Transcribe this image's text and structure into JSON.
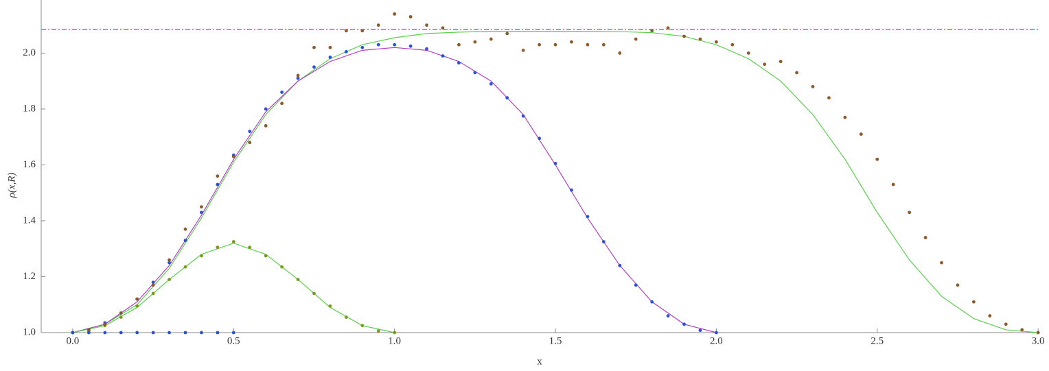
{
  "chart_data": {
    "type": "line",
    "x_label": "x",
    "y_label": "ρ(x,R)",
    "xlim": [
      -0.098,
      3.004
    ],
    "ylim": [
      1.0,
      2.19
    ],
    "xticks": [
      {
        "value": 0,
        "label": "0.0"
      },
      0.5,
      {
        "value": 1,
        "label": "1.0"
      },
      1.5,
      {
        "value": 2,
        "label": "2.0"
      },
      2.5,
      {
        "value": 3,
        "label": "3.0"
      }
    ],
    "yticks": [
      {
        "value": 1,
        "label": "1.0"
      },
      1.2,
      1.4,
      1.6,
      1.8,
      {
        "value": 2,
        "label": "2.0"
      }
    ],
    "hline": {
      "value": 2.085,
      "color": "#3a8fb0",
      "dashed": true
    },
    "series": [
      {
        "style": "line",
        "color": "#58d048",
        "x": [
          0,
          0.1,
          0.2,
          0.3,
          0.4,
          0.5,
          0.6,
          0.7,
          0.8,
          0.9,
          1.0,
          1.1,
          1.2,
          1.3,
          1.4,
          1.5,
          1.6,
          1.7,
          1.8,
          1.9,
          2.0,
          2.1,
          2.2,
          2.3,
          2.4,
          2.5,
          2.6,
          2.7,
          2.8,
          2.9,
          3.0
        ],
        "values": [
          1.0,
          1.03,
          1.1,
          1.23,
          1.41,
          1.61,
          1.78,
          1.9,
          1.98,
          2.03,
          2.055,
          2.07,
          2.075,
          2.078,
          2.078,
          2.078,
          2.078,
          2.077,
          2.073,
          2.06,
          2.03,
          1.98,
          1.9,
          1.78,
          1.62,
          1.43,
          1.26,
          1.13,
          1.05,
          1.01,
          1.0
        ]
      },
      {
        "style": "line",
        "color": "#b040c8",
        "x": [
          0,
          0.1,
          0.2,
          0.3,
          0.4,
          0.5,
          0.6,
          0.7,
          0.8,
          0.9,
          1.0,
          1.1,
          1.2,
          1.3,
          1.4,
          1.5,
          1.6,
          1.7,
          1.8,
          1.9,
          2.0
        ],
        "values": [
          1.0,
          1.03,
          1.11,
          1.24,
          1.42,
          1.62,
          1.79,
          1.9,
          1.97,
          2.01,
          2.02,
          2.01,
          1.97,
          1.9,
          1.78,
          1.6,
          1.41,
          1.24,
          1.11,
          1.03,
          1.0
        ]
      },
      {
        "style": "line",
        "color": "#58d048",
        "x": [
          0,
          0.1,
          0.2,
          0.3,
          0.4,
          0.5,
          0.6,
          0.7,
          0.8,
          0.9,
          1.0
        ],
        "values": [
          1.0,
          1.025,
          1.09,
          1.19,
          1.28,
          1.32,
          1.28,
          1.19,
          1.09,
          1.025,
          1.0
        ]
      },
      {
        "style": "dots",
        "color": "#2b4fe0",
        "x": [
          0,
          0.05,
          0.1,
          0.15,
          0.2,
          0.25,
          0.3,
          0.35,
          0.4,
          0.45,
          0.5,
          0.55,
          0.6,
          0.65,
          0.7,
          0.75,
          0.8,
          0.85,
          0.9,
          0.95,
          1.0,
          1.05,
          1.1,
          1.15,
          1.2,
          1.25,
          1.3,
          1.35,
          1.4,
          1.45,
          1.5,
          1.55,
          1.6,
          1.65,
          1.7,
          1.75,
          1.8,
          1.85,
          1.9,
          1.95,
          2.0
        ],
        "values": [
          1.0,
          1.01,
          1.035,
          1.07,
          1.12,
          1.18,
          1.25,
          1.33,
          1.43,
          1.53,
          1.635,
          1.72,
          1.8,
          1.86,
          1.91,
          1.95,
          1.985,
          2.005,
          2.02,
          2.03,
          2.03,
          2.025,
          2.015,
          1.99,
          1.965,
          1.93,
          1.89,
          1.84,
          1.775,
          1.695,
          1.605,
          1.51,
          1.415,
          1.325,
          1.24,
          1.17,
          1.11,
          1.06,
          1.03,
          1.008,
          1.0
        ]
      },
      {
        "style": "dots",
        "color": "#7a9a1a",
        "x": [
          0,
          0.05,
          0.1,
          0.15,
          0.2,
          0.25,
          0.3,
          0.35,
          0.4,
          0.45,
          0.5,
          0.55,
          0.6,
          0.65,
          0.7,
          0.75,
          0.8,
          0.85,
          0.9,
          0.95,
          1.0
        ],
        "values": [
          1.0,
          1.006,
          1.025,
          1.055,
          1.095,
          1.14,
          1.19,
          1.235,
          1.275,
          1.305,
          1.325,
          1.305,
          1.275,
          1.235,
          1.19,
          1.14,
          1.095,
          1.055,
          1.025,
          1.006,
          1.0
        ]
      },
      {
        "style": "dots",
        "color": "#8b5a2b",
        "x": [
          0,
          0.05,
          0.1,
          0.15,
          0.2,
          0.25,
          0.3,
          0.35,
          0.4,
          0.45,
          0.5,
          0.55,
          0.6,
          0.65,
          0.7,
          0.75,
          0.8,
          0.85,
          0.9,
          0.95,
          1.0,
          1.05,
          1.1,
          1.15,
          1.2,
          1.25,
          1.3,
          1.35,
          1.4,
          1.45,
          1.5,
          1.55,
          1.6,
          1.65,
          1.7,
          1.75,
          1.8,
          1.85,
          1.9,
          1.95,
          2.0,
          2.05,
          2.1,
          2.15,
          2.2,
          2.25,
          2.3,
          2.35,
          2.4,
          2.45,
          2.5,
          2.55,
          2.6,
          2.65,
          2.7,
          2.75,
          2.8,
          2.85,
          2.9,
          2.95,
          3.0
        ],
        "values": [
          1.0,
          1.01,
          1.03,
          1.07,
          1.12,
          1.17,
          1.26,
          1.37,
          1.45,
          1.56,
          1.63,
          1.68,
          1.74,
          1.82,
          1.92,
          2.02,
          2.02,
          2.08,
          2.08,
          2.1,
          2.14,
          2.13,
          2.1,
          2.09,
          2.03,
          2.04,
          2.05,
          2.07,
          2.01,
          2.03,
          2.03,
          2.04,
          2.03,
          2.03,
          2.0,
          2.05,
          2.08,
          2.09,
          2.06,
          2.05,
          2.04,
          2.03,
          2.0,
          1.96,
          1.97,
          1.93,
          1.88,
          1.84,
          1.77,
          1.71,
          1.62,
          1.53,
          1.43,
          1.34,
          1.25,
          1.17,
          1.11,
          1.06,
          1.03,
          1.01,
          1.0
        ]
      },
      {
        "style": "dots",
        "color": "#2b4fe0",
        "x": [
          0,
          0.05,
          0.1,
          0.15,
          0.2,
          0.25,
          0.3,
          0.35,
          0.4,
          0.45,
          0.5
        ],
        "values": [
          1.0,
          1.0,
          1.0,
          1.0,
          1.0,
          1.0,
          1.0,
          1.0,
          1.0,
          1.0,
          1.0
        ]
      }
    ]
  }
}
